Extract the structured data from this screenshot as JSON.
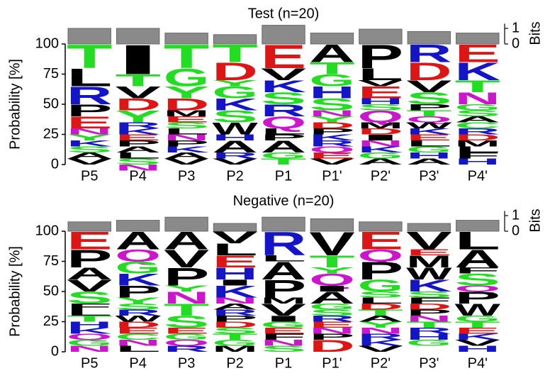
{
  "letter_colors": {
    "A": "#000000",
    "V": "#000000",
    "L": "#000000",
    "I": "#000000",
    "P": "#000000",
    "M": "#000000",
    "W": "#000000",
    "F": "#000000",
    "G": "#22dd22",
    "S": "#22dd22",
    "T": "#22dd22",
    "Y": "#22dd22",
    "C": "#22dd22",
    "K": "#1515c8",
    "R": "#1515c8",
    "H": "#1515c8",
    "D": "#dd1515",
    "E": "#dd1515",
    "N": "#cc15cc",
    "Q": "#cc15cc"
  },
  "chart_data": [
    {
      "type": "logo",
      "title": "Test (n=20)",
      "ylabel": "Probability [%]",
      "y2label": "Bits",
      "categories": [
        "P5",
        "P4",
        "P3",
        "P2",
        "P1",
        "P1'",
        "P2'",
        "P3'",
        "P4'"
      ],
      "ylim": [
        0,
        100
      ],
      "yticks": [
        0,
        25,
        50,
        75,
        100
      ],
      "y2lim": [
        0,
        1.3
      ],
      "y2ticks": [
        0,
        1
      ],
      "bits": [
        1.0,
        1.0,
        0.7,
        0.6,
        1.2,
        0.7,
        0.95,
        0.8,
        0.7
      ],
      "stacks": [
        [
          {
            "letter": "T",
            "value": 20
          },
          {
            "letter": "L",
            "value": 15
          },
          {
            "letter": "R",
            "value": 15
          },
          {
            "letter": "P",
            "value": 10
          },
          {
            "letter": "E",
            "value": 10
          },
          {
            "letter": "N",
            "value": 5
          },
          {
            "letter": "Y",
            "value": 5
          },
          {
            "letter": "K",
            "value": 5
          },
          {
            "letter": "S",
            "value": 5
          },
          {
            "letter": "A",
            "value": 5
          },
          {
            "letter": "V",
            "value": 5
          }
        ],
        [
          {
            "letter": "I",
            "value": 25
          },
          {
            "letter": "T",
            "value": 10
          },
          {
            "letter": "V",
            "value": 10
          },
          {
            "letter": "D",
            "value": 10
          },
          {
            "letter": "Y",
            "value": 10
          },
          {
            "letter": "R",
            "value": 5
          },
          {
            "letter": "K",
            "value": 5
          },
          {
            "letter": "E",
            "value": 5
          },
          {
            "letter": "P",
            "value": 5
          },
          {
            "letter": "A",
            "value": 5
          },
          {
            "letter": "L",
            "value": 5
          },
          {
            "letter": "S",
            "value": 5
          },
          {
            "letter": "N",
            "value": 5
          }
        ],
        [
          {
            "letter": "T",
            "value": 20
          },
          {
            "letter": "G",
            "value": 15
          },
          {
            "letter": "Y",
            "value": 10
          },
          {
            "letter": "D",
            "value": 10
          },
          {
            "letter": "M",
            "value": 5
          },
          {
            "letter": "E",
            "value": 5
          },
          {
            "letter": "S",
            "value": 5
          },
          {
            "letter": "L",
            "value": 5
          },
          {
            "letter": "N",
            "value": 5
          },
          {
            "letter": "P",
            "value": 5
          },
          {
            "letter": "K",
            "value": 5
          },
          {
            "letter": "A",
            "value": 5
          },
          {
            "letter": "V",
            "value": 5
          }
        ],
        [
          {
            "letter": "T",
            "value": 15
          },
          {
            "letter": "D",
            "value": 15
          },
          {
            "letter": "Y",
            "value": 5
          },
          {
            "letter": "G",
            "value": 10
          },
          {
            "letter": "K",
            "value": 10
          },
          {
            "letter": "S",
            "value": 10
          },
          {
            "letter": "W",
            "value": 10
          },
          {
            "letter": "H",
            "value": 5
          },
          {
            "letter": "A",
            "value": 10
          },
          {
            "letter": "R",
            "value": 5
          },
          {
            "letter": "V",
            "value": 5
          }
        ],
        [
          {
            "letter": "E",
            "value": 20
          },
          {
            "letter": "V",
            "value": 10
          },
          {
            "letter": "K",
            "value": 10
          },
          {
            "letter": "S",
            "value": 10
          },
          {
            "letter": "R",
            "value": 10
          },
          {
            "letter": "Q",
            "value": 10
          },
          {
            "letter": "L",
            "value": 5
          },
          {
            "letter": "P",
            "value": 5
          },
          {
            "letter": "A",
            "value": 10
          },
          {
            "letter": "G",
            "value": 5
          },
          {
            "letter": "T",
            "value": 5
          }
        ],
        [
          {
            "letter": "A",
            "value": 15
          },
          {
            "letter": "T",
            "value": 10
          },
          {
            "letter": "G",
            "value": 10
          },
          {
            "letter": "H",
            "value": 10
          },
          {
            "letter": "S",
            "value": 10
          },
          {
            "letter": "N",
            "value": 5
          },
          {
            "letter": "Y",
            "value": 5
          },
          {
            "letter": "D",
            "value": 5
          },
          {
            "letter": "P",
            "value": 5
          },
          {
            "letter": "K",
            "value": 5
          },
          {
            "letter": "R",
            "value": 5
          },
          {
            "letter": "Q",
            "value": 5
          },
          {
            "letter": "E",
            "value": 5
          },
          {
            "letter": "V",
            "value": 5
          }
        ],
        [
          {
            "letter": "P",
            "value": 20
          },
          {
            "letter": "L",
            "value": 10
          },
          {
            "letter": "V",
            "value": 5
          },
          {
            "letter": "E",
            "value": 10
          },
          {
            "letter": "H",
            "value": 5
          },
          {
            "letter": "S",
            "value": 5
          },
          {
            "letter": "Q",
            "value": 10
          },
          {
            "letter": "M",
            "value": 5
          },
          {
            "letter": "D",
            "value": 5
          },
          {
            "letter": "I",
            "value": 5
          },
          {
            "letter": "N",
            "value": 5
          },
          {
            "letter": "K",
            "value": 5
          },
          {
            "letter": "G",
            "value": 5
          },
          {
            "letter": "A",
            "value": 5
          }
        ],
        [
          {
            "letter": "R",
            "value": 15
          },
          {
            "letter": "D",
            "value": 15
          },
          {
            "letter": "V",
            "value": 10
          },
          {
            "letter": "S",
            "value": 10
          },
          {
            "letter": "P",
            "value": 5
          },
          {
            "letter": "T",
            "value": 5
          },
          {
            "letter": "Q",
            "value": 5
          },
          {
            "letter": "W",
            "value": 5
          },
          {
            "letter": "K",
            "value": 5
          },
          {
            "letter": "E",
            "value": 5
          },
          {
            "letter": "L",
            "value": 5
          },
          {
            "letter": "G",
            "value": 5
          },
          {
            "letter": "H",
            "value": 5
          },
          {
            "letter": "A",
            "value": 5
          }
        ],
        [
          {
            "letter": "E",
            "value": 15
          },
          {
            "letter": "K",
            "value": 15
          },
          {
            "letter": "T",
            "value": 10
          },
          {
            "letter": "N",
            "value": 10
          },
          {
            "letter": "G",
            "value": 5
          },
          {
            "letter": "S",
            "value": 5
          },
          {
            "letter": "A",
            "value": 5
          },
          {
            "letter": "C",
            "value": 5
          },
          {
            "letter": "R",
            "value": 5
          },
          {
            "letter": "D",
            "value": 5
          },
          {
            "letter": "M",
            "value": 5
          },
          {
            "letter": "L",
            "value": 5
          },
          {
            "letter": "F",
            "value": 5
          },
          {
            "letter": "H",
            "value": 5
          }
        ]
      ]
    },
    {
      "type": "logo",
      "title": "Negative (n=20)",
      "ylabel": "Probability [%]",
      "y2label": "Bits",
      "categories": [
        "P5",
        "P4",
        "P3",
        "P2",
        "P1",
        "P1'",
        "P2'",
        "P3'",
        "P4'"
      ],
      "ylim": [
        0,
        100
      ],
      "yticks": [
        0,
        25,
        50,
        75,
        100
      ],
      "y2lim": [
        0,
        1.3
      ],
      "y2ticks": [
        0,
        1
      ],
      "bits": [
        0.6,
        0.7,
        0.9,
        0.5,
        0.9,
        0.8,
        0.6,
        0.5,
        0.7
      ],
      "stacks": [
        [
          {
            "letter": "E",
            "value": 15
          },
          {
            "letter": "P",
            "value": 15
          },
          {
            "letter": "A",
            "value": 10
          },
          {
            "letter": "V",
            "value": 10
          },
          {
            "letter": "S",
            "value": 10
          },
          {
            "letter": "F",
            "value": 5
          },
          {
            "letter": "L",
            "value": 5
          },
          {
            "letter": "T",
            "value": 5
          },
          {
            "letter": "H",
            "value": 5
          },
          {
            "letter": "K",
            "value": 5
          },
          {
            "letter": "Q",
            "value": 5
          },
          {
            "letter": "G",
            "value": 5
          },
          {
            "letter": "N",
            "value": 5
          }
        ],
        [
          {
            "letter": "A",
            "value": 15
          },
          {
            "letter": "Q",
            "value": 10
          },
          {
            "letter": "G",
            "value": 10
          },
          {
            "letter": "K",
            "value": 10
          },
          {
            "letter": "P",
            "value": 10
          },
          {
            "letter": "Y",
            "value": 5
          },
          {
            "letter": "S",
            "value": 5
          },
          {
            "letter": "R",
            "value": 5
          },
          {
            "letter": "W",
            "value": 5
          },
          {
            "letter": "D",
            "value": 5
          },
          {
            "letter": "E",
            "value": 5
          },
          {
            "letter": "C",
            "value": 5
          },
          {
            "letter": "N",
            "value": 5
          },
          {
            "letter": "L",
            "value": 5
          }
        ],
        [
          {
            "letter": "A",
            "value": 15
          },
          {
            "letter": "V",
            "value": 15
          },
          {
            "letter": "P",
            "value": 15
          },
          {
            "letter": "Y",
            "value": 5
          },
          {
            "letter": "N",
            "value": 10
          },
          {
            "letter": "T",
            "value": 10
          },
          {
            "letter": "S",
            "value": 10
          },
          {
            "letter": "E",
            "value": 5
          },
          {
            "letter": "G",
            "value": 5
          },
          {
            "letter": "Q",
            "value": 5
          },
          {
            "letter": "R",
            "value": 5
          }
        ],
        [
          {
            "letter": "V",
            "value": 10
          },
          {
            "letter": "L",
            "value": 10
          },
          {
            "letter": "E",
            "value": 10
          },
          {
            "letter": "H",
            "value": 10
          },
          {
            "letter": "I",
            "value": 5
          },
          {
            "letter": "K",
            "value": 10
          },
          {
            "letter": "N",
            "value": 5
          },
          {
            "letter": "A",
            "value": 5
          },
          {
            "letter": "R",
            "value": 5
          },
          {
            "letter": "P",
            "value": 5
          },
          {
            "letter": "D",
            "value": 5
          },
          {
            "letter": "S",
            "value": 5
          },
          {
            "letter": "T",
            "value": 5
          },
          {
            "letter": "G",
            "value": 5
          },
          {
            "letter": "M",
            "value": 5
          }
        ],
        [
          {
            "letter": "R",
            "value": 20
          },
          {
            "letter": "L",
            "value": 5
          },
          {
            "letter": "A",
            "value": 15
          },
          {
            "letter": "P",
            "value": 15
          },
          {
            "letter": "M",
            "value": 5
          },
          {
            "letter": "V",
            "value": 10
          },
          {
            "letter": "I",
            "value": 5
          },
          {
            "letter": "G",
            "value": 5
          },
          {
            "letter": "E",
            "value": 5
          },
          {
            "letter": "F",
            "value": 5
          },
          {
            "letter": "N",
            "value": 5
          },
          {
            "letter": "S",
            "value": 5
          }
        ],
        [
          {
            "letter": "V",
            "value": 20
          },
          {
            "letter": "T",
            "value": 10
          },
          {
            "letter": "Y",
            "value": 5
          },
          {
            "letter": "Q",
            "value": 10
          },
          {
            "letter": "I",
            "value": 5
          },
          {
            "letter": "A",
            "value": 10
          },
          {
            "letter": "G",
            "value": 5
          },
          {
            "letter": "S",
            "value": 5
          },
          {
            "letter": "R",
            "value": 5
          },
          {
            "letter": "E",
            "value": 5
          },
          {
            "letter": "N",
            "value": 5
          },
          {
            "letter": "P",
            "value": 5
          },
          {
            "letter": "D",
            "value": 10
          }
        ],
        [
          {
            "letter": "E",
            "value": 15
          },
          {
            "letter": "Q",
            "value": 10
          },
          {
            "letter": "P",
            "value": 15
          },
          {
            "letter": "G",
            "value": 10
          },
          {
            "letter": "S",
            "value": 5
          },
          {
            "letter": "L",
            "value": 5
          },
          {
            "letter": "D",
            "value": 5
          },
          {
            "letter": "T",
            "value": 5
          },
          {
            "letter": "A",
            "value": 5
          },
          {
            "letter": "Y",
            "value": 5
          },
          {
            "letter": "N",
            "value": 5
          },
          {
            "letter": "R",
            "value": 5
          },
          {
            "letter": "K",
            "value": 5
          },
          {
            "letter": "V",
            "value": 5
          }
        ],
        [
          {
            "letter": "V",
            "value": 15
          },
          {
            "letter": "E",
            "value": 5
          },
          {
            "letter": "M",
            "value": 10
          },
          {
            "letter": "W",
            "value": 10
          },
          {
            "letter": "K",
            "value": 10
          },
          {
            "letter": "S",
            "value": 5
          },
          {
            "letter": "F",
            "value": 5
          },
          {
            "letter": "D",
            "value": 5
          },
          {
            "letter": "P",
            "value": 5
          },
          {
            "letter": "N",
            "value": 5
          },
          {
            "letter": "T",
            "value": 5
          },
          {
            "letter": "R",
            "value": 5
          },
          {
            "letter": "H",
            "value": 5
          },
          {
            "letter": "G",
            "value": 5
          }
        ],
        [
          {
            "letter": "L",
            "value": 15
          },
          {
            "letter": "A",
            "value": 15
          },
          {
            "letter": "F",
            "value": 5
          },
          {
            "letter": "S",
            "value": 10
          },
          {
            "letter": "Q",
            "value": 5
          },
          {
            "letter": "P",
            "value": 10
          },
          {
            "letter": "W",
            "value": 10
          },
          {
            "letter": "G",
            "value": 5
          },
          {
            "letter": "T",
            "value": 5
          },
          {
            "letter": "E",
            "value": 5
          },
          {
            "letter": "K",
            "value": 5
          },
          {
            "letter": "V",
            "value": 5
          },
          {
            "letter": "H",
            "value": 5
          }
        ]
      ]
    }
  ]
}
